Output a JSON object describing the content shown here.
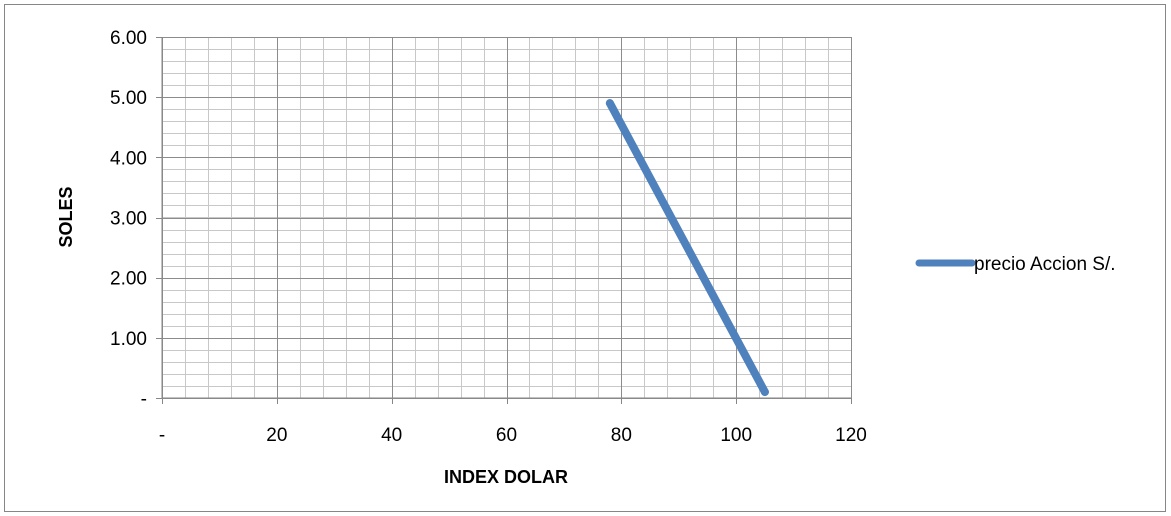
{
  "chart_data": {
    "type": "scatter",
    "xlabel": "INDEX DOLAR",
    "ylabel": "SOLES",
    "xlim": [
      0,
      120
    ],
    "ylim": [
      0,
      6
    ],
    "x_major_step": 20,
    "x_minor_step": 4,
    "y_major_step": 1,
    "y_minor_step": 0.2,
    "x_tick_labels": [
      "-",
      "20",
      "40",
      "60",
      "80",
      "100",
      "120"
    ],
    "y_tick_labels": [
      "-",
      "1.00",
      "2.00",
      "3.00",
      "4.00",
      "5.00",
      "6.00"
    ],
    "grid": "major and minor",
    "legend_position": "right",
    "series": [
      {
        "name": "precio Accion S/.",
        "color": "#4f81bd",
        "line": "straight",
        "points": [
          {
            "x": 78,
            "y": 4.9
          },
          {
            "x": 105,
            "y": 0.1
          }
        ]
      }
    ]
  }
}
